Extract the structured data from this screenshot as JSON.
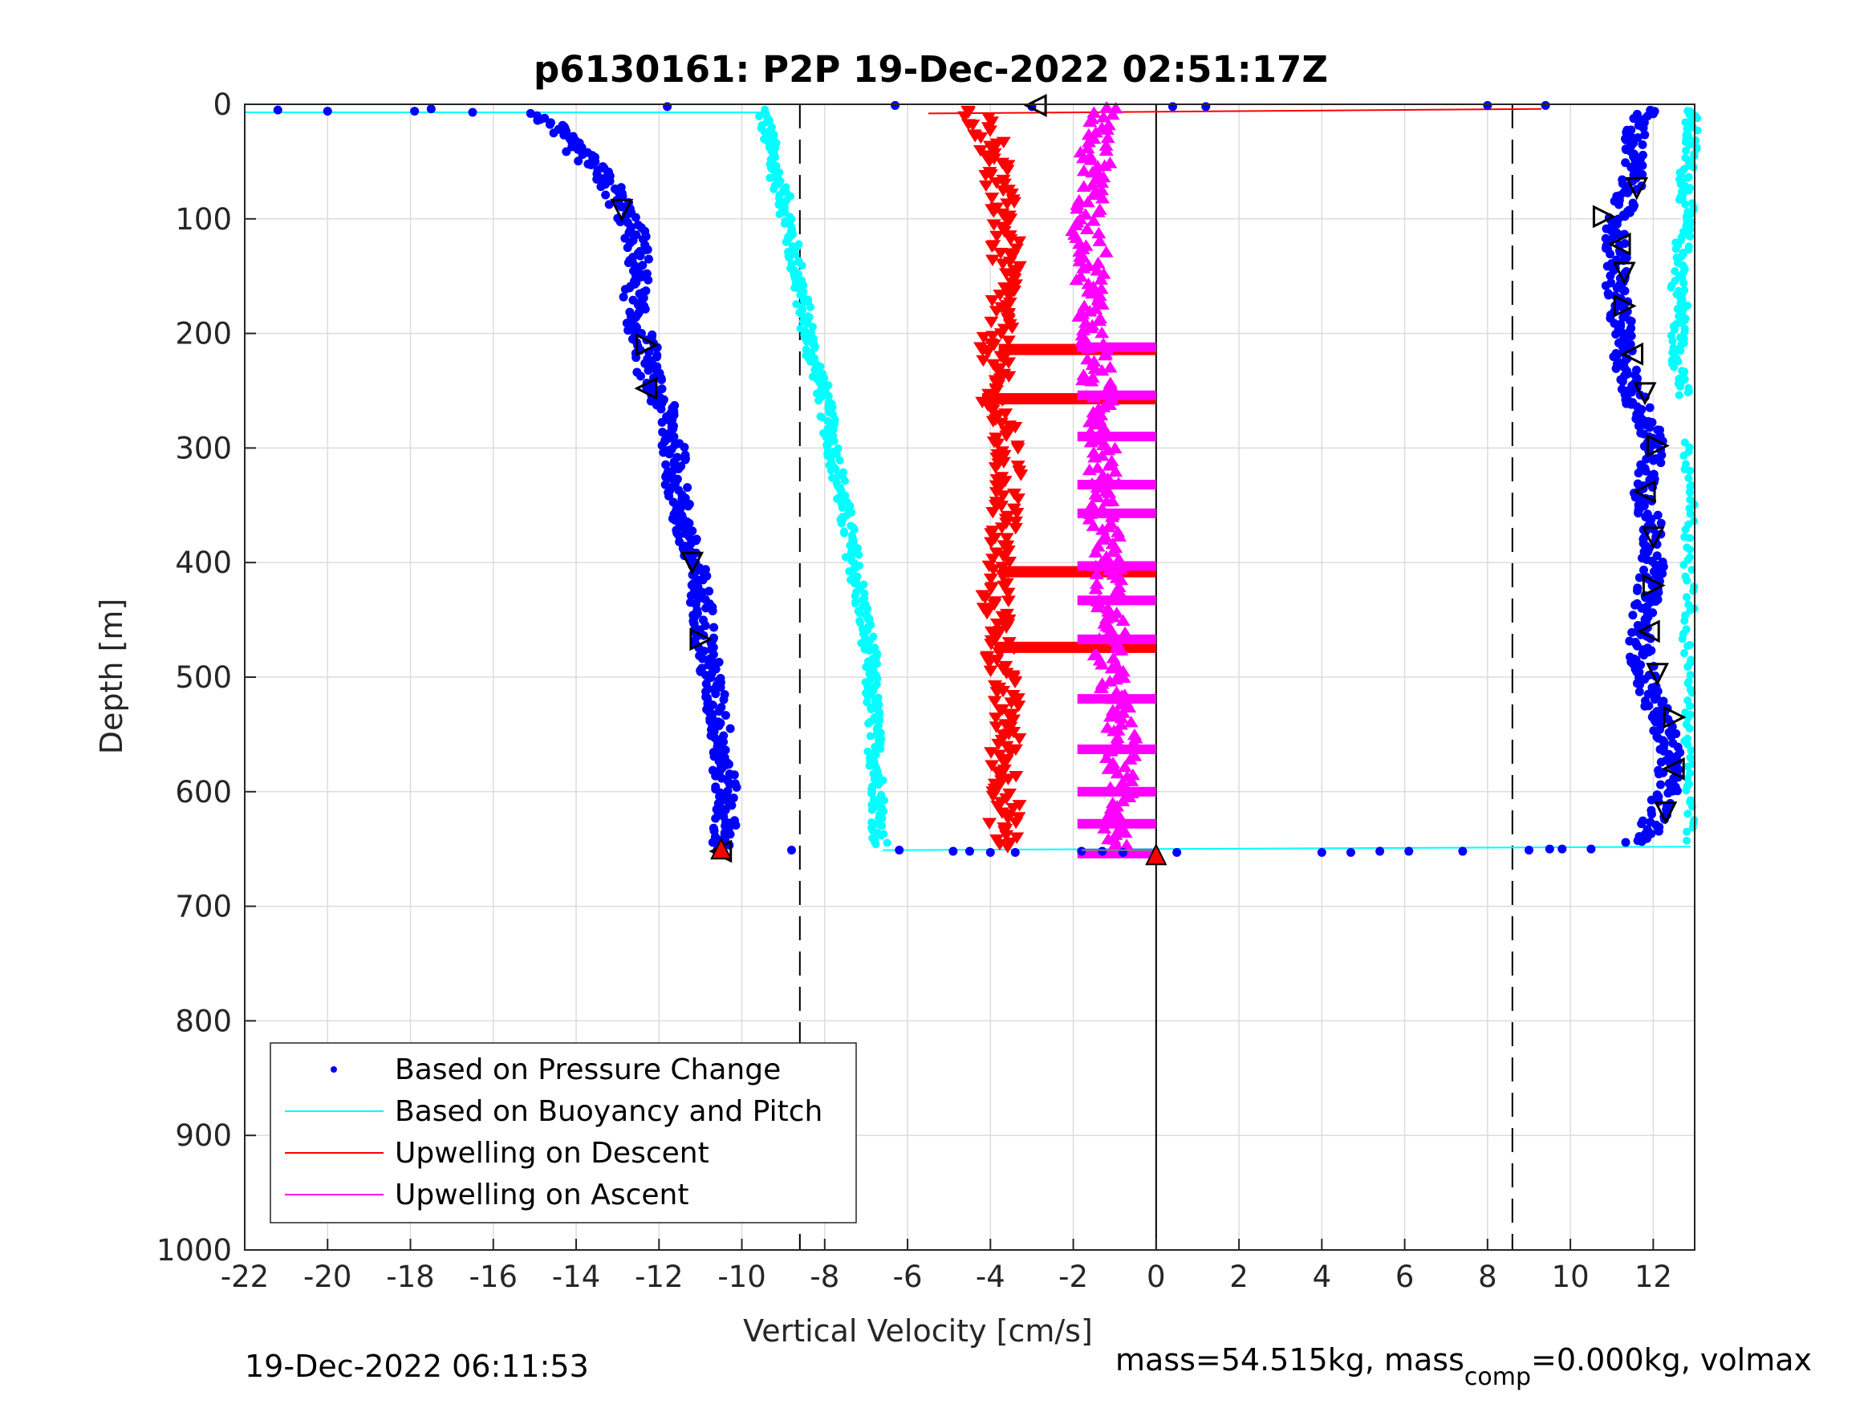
{
  "chart_data": {
    "type": "scatter",
    "title": "p6130161: P2P 19-Dec-2022 02:51:17Z",
    "xlabel": "Vertical Velocity [cm/s]",
    "ylabel": "Depth [m]",
    "xlim": [
      -22,
      13
    ],
    "ylim": [
      0,
      1000
    ],
    "y_reversed": true,
    "grid": true,
    "x_ticks": [
      "-22",
      "-20",
      "-18",
      "-16",
      "-14",
      "-12",
      "-10",
      "-8",
      "-6",
      "-4",
      "-2",
      "0",
      "2",
      "4",
      "6",
      "8",
      "10",
      "12"
    ],
    "y_ticks": [
      "0",
      "100",
      "200",
      "300",
      "400",
      "500",
      "600",
      "700",
      "800",
      "900",
      "1000"
    ],
    "reference_lines": {
      "dashed_x": [
        -8.6,
        8.6
      ],
      "solid_x": [
        0
      ]
    },
    "legend": {
      "placement": "bottom-left",
      "entries": [
        {
          "label": "Based on Pressure Change",
          "color": "#0000ff",
          "style": "dot"
        },
        {
          "label": "Based on Buoyancy and Pitch",
          "color": "#00ffff",
          "style": "line"
        },
        {
          "label": "Upwelling on Descent",
          "color": "#ff0000",
          "style": "line"
        },
        {
          "label": "Upwelling on Ascent",
          "color": "#ff00ff",
          "style": "line"
        }
      ]
    },
    "series": [
      {
        "name": "Based on Pressure Change",
        "color": "#0000ff",
        "descent": [
          [
            -14.8,
            10
          ],
          [
            -14.3,
            30
          ],
          [
            -13.7,
            50
          ],
          [
            -13.2,
            70
          ],
          [
            -12.9,
            90
          ],
          [
            -12.6,
            110
          ],
          [
            -12.5,
            130
          ],
          [
            -12.5,
            150
          ],
          [
            -12.6,
            170
          ],
          [
            -12.6,
            190
          ],
          [
            -12.3,
            210
          ],
          [
            -12.3,
            230
          ],
          [
            -12.1,
            250
          ],
          [
            -11.8,
            270
          ],
          [
            -11.7,
            290
          ],
          [
            -11.6,
            310
          ],
          [
            -11.6,
            330
          ],
          [
            -11.5,
            350
          ],
          [
            -11.4,
            370
          ],
          [
            -11.3,
            390
          ],
          [
            -11.1,
            410
          ],
          [
            -11.0,
            430
          ],
          [
            -10.9,
            450
          ],
          [
            -10.9,
            470
          ],
          [
            -10.8,
            490
          ],
          [
            -10.7,
            510
          ],
          [
            -10.6,
            530
          ],
          [
            -10.5,
            550
          ],
          [
            -10.5,
            570
          ],
          [
            -10.4,
            590
          ],
          [
            -10.4,
            610
          ],
          [
            -10.4,
            630
          ],
          [
            -10.5,
            650
          ]
        ],
        "ascent": [
          [
            11.2,
            650
          ],
          [
            11.8,
            640
          ],
          [
            12.1,
            620
          ],
          [
            12.3,
            600
          ],
          [
            12.4,
            580
          ],
          [
            12.4,
            560
          ],
          [
            12.2,
            540
          ],
          [
            12.0,
            520
          ],
          [
            11.8,
            500
          ],
          [
            11.7,
            480
          ],
          [
            11.7,
            460
          ],
          [
            11.8,
            440
          ],
          [
            11.9,
            420
          ],
          [
            12.0,
            400
          ],
          [
            12.0,
            380
          ],
          [
            11.9,
            360
          ],
          [
            11.8,
            340
          ],
          [
            11.9,
            320
          ],
          [
            12.0,
            300
          ],
          [
            11.9,
            280
          ],
          [
            11.6,
            260
          ],
          [
            11.4,
            240
          ],
          [
            11.3,
            220
          ],
          [
            11.2,
            200
          ],
          [
            11.2,
            180
          ],
          [
            11.1,
            160
          ],
          [
            11.1,
            140
          ],
          [
            11.1,
            120
          ],
          [
            11.1,
            100
          ],
          [
            11.4,
            80
          ],
          [
            11.5,
            60
          ],
          [
            11.5,
            40
          ],
          [
            11.6,
            20
          ],
          [
            11.8,
            5
          ]
        ],
        "outliers": [
          [
            -21.2,
            5
          ],
          [
            -20.0,
            6
          ],
          [
            -17.9,
            6
          ],
          [
            -17.5,
            4
          ],
          [
            -16.5,
            7
          ],
          [
            -15.1,
            8
          ],
          [
            -11.8,
            2
          ],
          [
            -6.3,
            1
          ],
          [
            -3.0,
            2
          ],
          [
            0.4,
            2
          ],
          [
            1.2,
            2
          ],
          [
            8.0,
            1
          ],
          [
            9.4,
            1
          ],
          [
            -8.8,
            651
          ],
          [
            -6.2,
            651
          ],
          [
            -4.9,
            652
          ],
          [
            -4.5,
            652
          ],
          [
            -4.0,
            653
          ],
          [
            -3.4,
            653
          ],
          [
            -1.8,
            652
          ],
          [
            -1.3,
            652
          ],
          [
            -0.8,
            653
          ],
          [
            0.5,
            653
          ],
          [
            4.0,
            653
          ],
          [
            4.7,
            653
          ],
          [
            5.4,
            652
          ],
          [
            6.1,
            652
          ],
          [
            7.4,
            652
          ],
          [
            9.0,
            651
          ],
          [
            9.5,
            650
          ],
          [
            9.8,
            650
          ],
          [
            10.5,
            650
          ]
        ]
      },
      {
        "name": "Based on Buoyancy and Pitch",
        "color": "#00ffff",
        "descent": [
          [
            -9.5,
            5
          ],
          [
            -9.4,
            20
          ],
          [
            -9.3,
            40
          ],
          [
            -9.2,
            60
          ],
          [
            -9.0,
            80
          ],
          [
            -8.9,
            100
          ],
          [
            -8.8,
            120
          ],
          [
            -8.7,
            140
          ],
          [
            -8.6,
            160
          ],
          [
            -8.5,
            180
          ],
          [
            -8.4,
            200
          ],
          [
            -8.3,
            220
          ],
          [
            -8.1,
            240
          ],
          [
            -8.0,
            260
          ],
          [
            -7.9,
            280
          ],
          [
            -7.8,
            300
          ],
          [
            -7.7,
            320
          ],
          [
            -7.6,
            340
          ],
          [
            -7.5,
            360
          ],
          [
            -7.4,
            380
          ],
          [
            -7.3,
            400
          ],
          [
            -7.2,
            420
          ],
          [
            -7.1,
            440
          ],
          [
            -7.0,
            460
          ],
          [
            -6.9,
            480
          ],
          [
            -6.9,
            500
          ],
          [
            -6.85,
            520
          ],
          [
            -6.8,
            540
          ],
          [
            -6.8,
            560
          ],
          [
            -6.75,
            580
          ],
          [
            -6.7,
            600
          ],
          [
            -6.7,
            620
          ],
          [
            -6.7,
            640
          ],
          [
            -6.6,
            648
          ]
        ],
        "ascent": [
          [
            12.9,
            645
          ],
          [
            12.9,
            620
          ],
          [
            12.8,
            600
          ],
          [
            12.9,
            580
          ],
          [
            12.8,
            560
          ],
          [
            12.8,
            540
          ],
          [
            12.9,
            520
          ],
          [
            12.9,
            500
          ],
          [
            12.8,
            480
          ],
          [
            12.8,
            460
          ],
          [
            12.9,
            440
          ],
          [
            12.9,
            420
          ],
          [
            12.8,
            400
          ],
          [
            12.8,
            380
          ],
          [
            12.9,
            360
          ],
          [
            12.9,
            340
          ],
          [
            12.8,
            320
          ],
          [
            12.8,
            300
          ],
          [
            12.7,
            280
          ],
          [
            12.7,
            260
          ],
          [
            12.7,
            240
          ],
          [
            12.6,
            220
          ],
          [
            12.6,
            200
          ],
          [
            12.7,
            180
          ],
          [
            12.6,
            160
          ],
          [
            12.7,
            140
          ],
          [
            12.7,
            120
          ],
          [
            12.8,
            100
          ],
          [
            12.8,
            80
          ],
          [
            12.8,
            60
          ],
          [
            12.9,
            40
          ],
          [
            12.9,
            20
          ],
          [
            12.9,
            5
          ]
        ],
        "transitions": [
          [
            [
              -22,
              7
            ],
            [
              -9.5,
              7
            ]
          ],
          [
            [
              -6.6,
              651
            ],
            [
              12.9,
              648
            ]
          ]
        ]
      },
      {
        "name": "Upwelling on Descent",
        "color": "#ff0000",
        "points": [
          [
            -4.3,
            10
          ],
          [
            -4.0,
            30
          ],
          [
            -3.8,
            50
          ],
          [
            -3.9,
            70
          ],
          [
            -3.7,
            90
          ],
          [
            -3.6,
            110
          ],
          [
            -3.7,
            130
          ],
          [
            -3.6,
            150
          ],
          [
            -3.7,
            170
          ],
          [
            -3.8,
            190
          ],
          [
            -3.9,
            210
          ],
          [
            -3.9,
            230
          ],
          [
            -3.9,
            250
          ],
          [
            -3.8,
            270
          ],
          [
            -3.7,
            290
          ],
          [
            -3.6,
            310
          ],
          [
            -3.6,
            330
          ],
          [
            -3.6,
            350
          ],
          [
            -3.7,
            370
          ],
          [
            -3.8,
            390
          ],
          [
            -3.8,
            410
          ],
          [
            -3.9,
            430
          ],
          [
            -3.8,
            450
          ],
          [
            -3.7,
            470
          ],
          [
            -3.8,
            490
          ],
          [
            -3.7,
            510
          ],
          [
            -3.6,
            530
          ],
          [
            -3.6,
            550
          ],
          [
            -3.7,
            570
          ],
          [
            -3.6,
            590
          ],
          [
            -3.6,
            610
          ],
          [
            -3.7,
            630
          ],
          [
            -3.6,
            648
          ]
        ],
        "surface_line": [
          [
            -5.5,
            8
          ],
          [
            9.3,
            4
          ]
        ],
        "bands": [
          [
            -3.8,
            214
          ],
          [
            -4.2,
            257
          ],
          [
            -3.8,
            408
          ],
          [
            -3.9,
            474
          ]
        ]
      },
      {
        "name": "Upwelling on Ascent",
        "color": "#ff00ff",
        "points": [
          [
            -1.0,
            645
          ],
          [
            -0.9,
            620
          ],
          [
            -0.8,
            600
          ],
          [
            -0.9,
            580
          ],
          [
            -0.8,
            560
          ],
          [
            -0.9,
            540
          ],
          [
            -1.0,
            520
          ],
          [
            -1.1,
            500
          ],
          [
            -1.2,
            480
          ],
          [
            -1.0,
            460
          ],
          [
            -1.2,
            440
          ],
          [
            -1.1,
            420
          ],
          [
            -1.2,
            400
          ],
          [
            -1.1,
            380
          ],
          [
            -1.3,
            360
          ],
          [
            -1.2,
            340
          ],
          [
            -1.3,
            320
          ],
          [
            -1.2,
            300
          ],
          [
            -1.3,
            280
          ],
          [
            -1.2,
            260
          ],
          [
            -1.5,
            240
          ],
          [
            -1.4,
            220
          ],
          [
            -1.6,
            200
          ],
          [
            -1.5,
            180
          ],
          [
            -1.6,
            160
          ],
          [
            -1.5,
            140
          ],
          [
            -1.6,
            120
          ],
          [
            -1.8,
            100
          ],
          [
            -1.5,
            80
          ],
          [
            -1.4,
            60
          ],
          [
            -1.5,
            40
          ],
          [
            -1.4,
            20
          ],
          [
            -1.2,
            5
          ]
        ],
        "bands_x": [
          [
            -1.9,
            0
          ],
          [
            -1.9,
            0
          ]
        ],
        "bands_y": [
          212,
          254,
          290,
          332,
          357,
          403,
          433,
          467,
          519,
          563,
          600,
          628,
          654
        ]
      }
    ],
    "markers": [
      {
        "kind": "black-triangle",
        "points": [
          [
            -2.9,
            1
          ],
          [
            -12.9,
            92
          ],
          [
            -12.3,
            210
          ],
          [
            -12.3,
            248
          ],
          [
            -11.2,
            400
          ],
          [
            -11.0,
            467
          ],
          [
            -10.5,
            652
          ],
          [
            11.6,
            73
          ],
          [
            10.8,
            98
          ],
          [
            11.2,
            122
          ],
          [
            11.3,
            147
          ],
          [
            11.3,
            176
          ],
          [
            11.5,
            218
          ],
          [
            11.8,
            252
          ],
          [
            12.1,
            298
          ],
          [
            11.8,
            338
          ],
          [
            12.0,
            378
          ],
          [
            12.0,
            420
          ],
          [
            11.9,
            460
          ],
          [
            12.1,
            497
          ],
          [
            12.5,
            535
          ],
          [
            12.5,
            580
          ],
          [
            12.3,
            618
          ]
        ]
      },
      {
        "kind": "red-triangle",
        "points": [
          [
            -10.5,
            650
          ],
          [
            0,
            655
          ]
        ]
      }
    ]
  },
  "footer": {
    "left": "19-Dec-2022 06:11:53",
    "right_a": "mass=54.515kg, mass",
    "right_sub": "comp",
    "right_b": "=0.000kg, volmax"
  }
}
